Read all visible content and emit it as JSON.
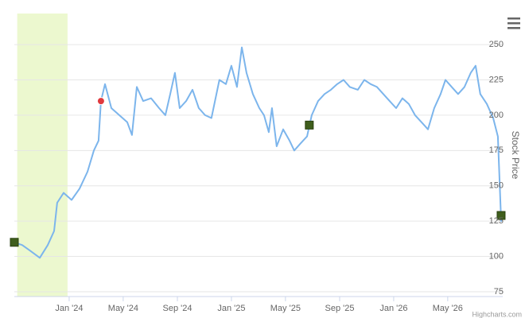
{
  "chart_data": {
    "type": "line",
    "y_axis_title": "Stock Price",
    "credits": "Highcharts.com",
    "xlim": [
      2023.662,
      2026.672
    ],
    "ylim": [
      71.6,
      272
    ],
    "xticks": [
      {
        "value": 2024,
        "label": "Jan '24"
      },
      {
        "value": 2024.333,
        "label": "May '24"
      },
      {
        "value": 2024.667,
        "label": "Sep '24"
      },
      {
        "value": 2025,
        "label": "Jan '25"
      },
      {
        "value": 2025.333,
        "label": "May '25"
      },
      {
        "value": 2025.667,
        "label": "Sep '25"
      },
      {
        "value": 2026,
        "label": "Jan '26"
      },
      {
        "value": 2026.333,
        "label": "May '26"
      }
    ],
    "yticks": [
      75,
      100,
      125,
      150,
      175,
      200,
      225,
      250
    ],
    "grid": true,
    "plot_band": {
      "from": 2023.68,
      "to": 2023.99,
      "color": "#ecf8cf"
    },
    "series": [
      {
        "color": "#7cb5ec",
        "x": [
          2023.662,
          2023.711,
          2023.76,
          2023.819,
          2023.868,
          2023.907,
          2023.926,
          2023.966,
          2024.015,
          2024.064,
          2024.113,
          2024.152,
          2024.181,
          2024.196,
          2024.221,
          2024.26,
          2024.309,
          2024.358,
          2024.387,
          2024.417,
          2024.456,
          2024.505,
          2024.554,
          2024.593,
          2024.623,
          2024.652,
          2024.681,
          2024.721,
          2024.76,
          2024.799,
          2024.838,
          2024.877,
          2024.926,
          2024.966,
          2025.0,
          2025.034,
          2025.064,
          2025.093,
          2025.132,
          2025.172,
          2025.201,
          2025.23,
          2025.25,
          2025.279,
          2025.319,
          2025.358,
          2025.387,
          2025.426,
          2025.466,
          2025.495,
          2025.534,
          2025.574,
          2025.613,
          2025.652,
          2025.691,
          2025.73,
          2025.779,
          2025.819,
          2025.858,
          2025.897,
          2025.936,
          2025.975,
          2026.015,
          2026.054,
          2026.093,
          2026.132,
          2026.172,
          2026.211,
          2026.25,
          2026.289,
          2026.319,
          2026.358,
          2026.397,
          2026.436,
          2026.475,
          2026.505,
          2026.534,
          2026.574,
          2026.613,
          2026.642,
          2026.662,
          2026.672
        ],
        "values": [
          110,
          108,
          104,
          99,
          108,
          118,
          138,
          145,
          140,
          148,
          160,
          175,
          182,
          210,
          222,
          205,
          200,
          195,
          186,
          220,
          210,
          212,
          205,
          200,
          215,
          230,
          205,
          210,
          218,
          205,
          200,
          198,
          225,
          222,
          235,
          220,
          248,
          230,
          215,
          205,
          200,
          188,
          205,
          178,
          190,
          182,
          175,
          180,
          185,
          200,
          210,
          215,
          218,
          222,
          225,
          220,
          218,
          225,
          222,
          220,
          215,
          210,
          205,
          212,
          208,
          200,
          195,
          190,
          205,
          215,
          225,
          220,
          215,
          220,
          230,
          235,
          215,
          208,
          198,
          185,
          125,
          130
        ]
      }
    ],
    "markers": [
      {
        "x": 2023.662,
        "y": 110,
        "shape": "square",
        "color": "#3f5e1c"
      },
      {
        "x": 2024.196,
        "y": 210,
        "shape": "circle",
        "color": "#e0393e"
      },
      {
        "x": 2025.48,
        "y": 193,
        "shape": "square",
        "color": "#3f5e1c"
      },
      {
        "x": 2026.662,
        "y": 129,
        "shape": "square",
        "color": "#3f5e1c"
      }
    ]
  }
}
